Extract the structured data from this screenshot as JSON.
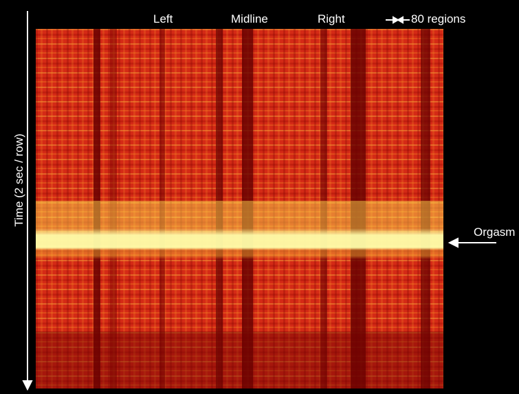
{
  "header": {
    "labels": [
      "Left",
      "Midline",
      "Right",
      "80 regions"
    ]
  },
  "axis_label": "Time (2 sec / row)",
  "annotation": "Orgasm"
}
